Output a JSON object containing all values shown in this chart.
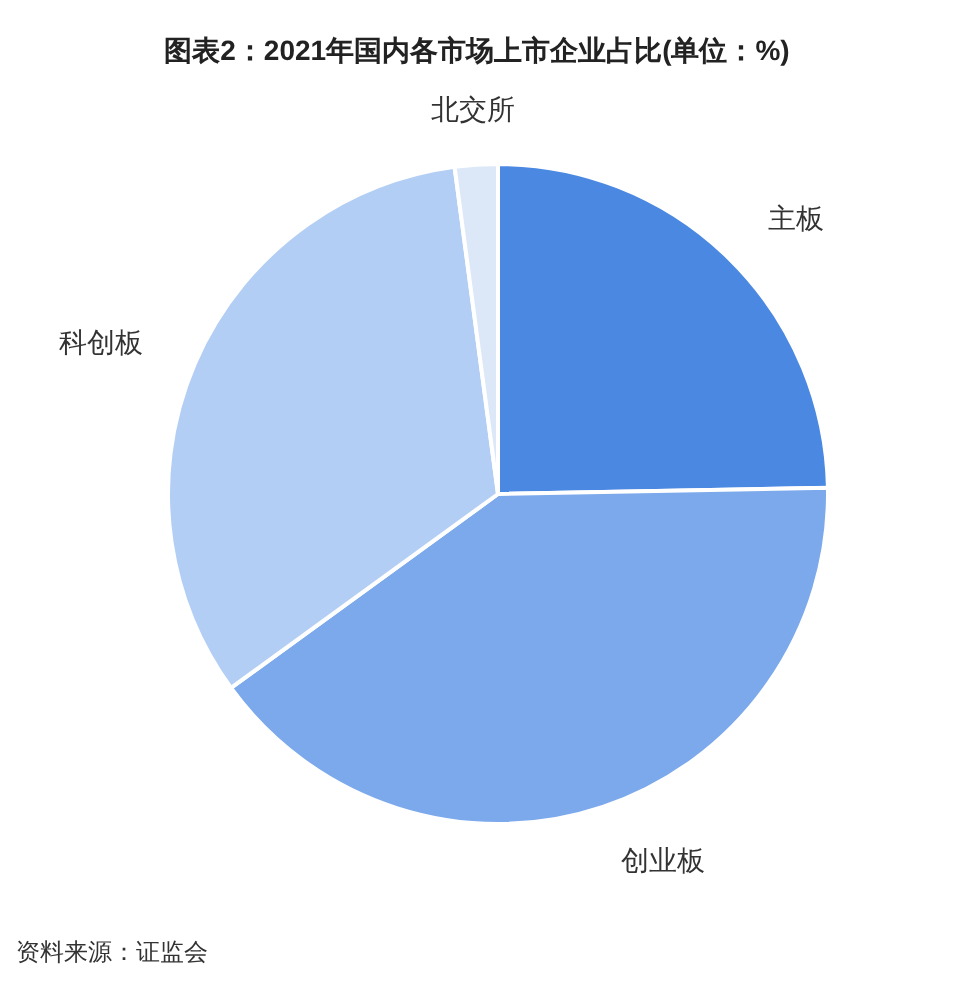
{
  "chart_data": {
    "type": "pie",
    "title": "图表2：2021年国内各市场上市企业占比(单位：%)",
    "categories": [
      "主板",
      "创业板",
      "科创板",
      "北交所"
    ],
    "values": [
      24.7,
      40.3,
      32.9,
      2.1
    ],
    "colors": [
      "#4a88e2",
      "#7ba9ec",
      "#b3cef4",
      "#dce8f8"
    ],
    "annotations": [
      "资料来源：证监会"
    ]
  }
}
